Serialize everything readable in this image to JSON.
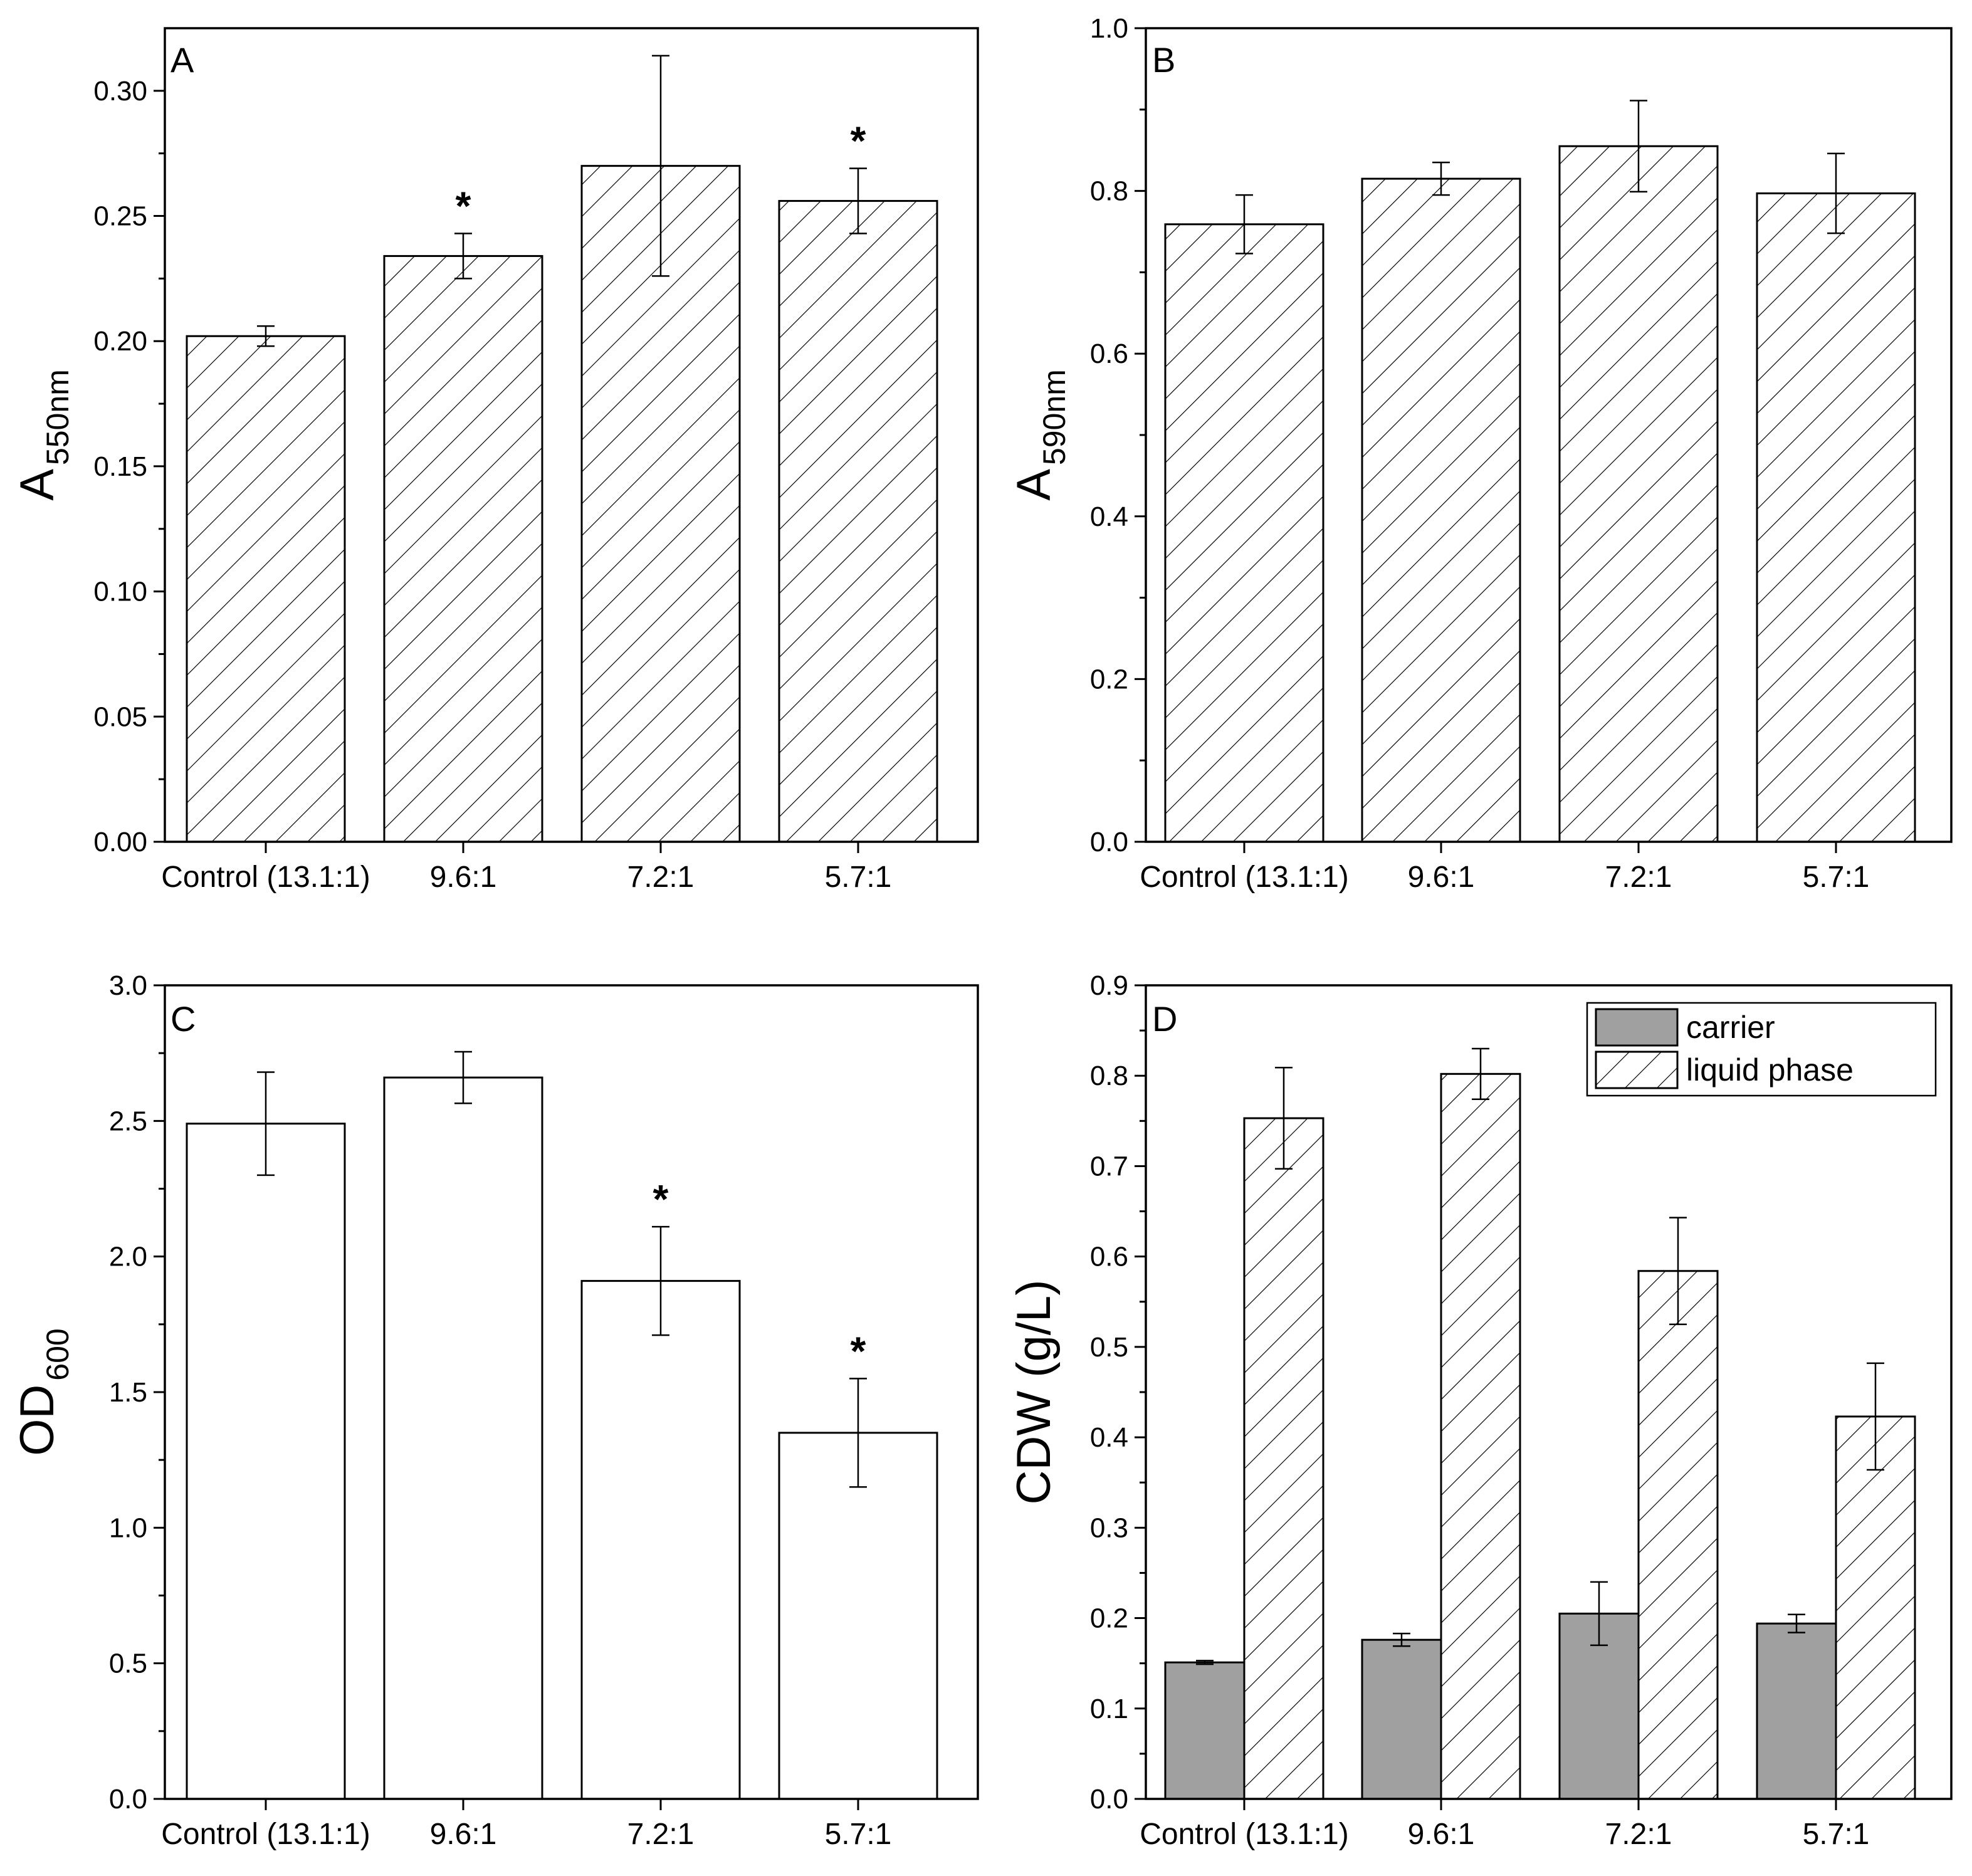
{
  "colors": {
    "axis": "#000000",
    "bar_fill": "#ffffff",
    "carrier_fill": "#a0a0a0",
    "hatch": "#000000"
  },
  "chart_data": [
    {
      "panel": "A",
      "type": "bar",
      "ylabel_main": "A",
      "ylabel_sub": "550nm",
      "ylim": [
        0,
        0.325
      ],
      "yticks": [
        "0.00",
        "0.05",
        "0.10",
        "0.15",
        "0.20",
        "0.25",
        "0.30"
      ],
      "categories": [
        "Control (13.1:1)",
        "9.6:1",
        "7.2:1",
        "5.7:1"
      ],
      "series": [
        {
          "name": "A550nm",
          "pattern": "hatch",
          "values": [
            0.202,
            0.234,
            0.27,
            0.256
          ],
          "errors": [
            0.004,
            0.009,
            0.044,
            0.013
          ]
        }
      ],
      "annotations": [
        {
          "category_index": 1,
          "text": "*"
        },
        {
          "category_index": 3,
          "text": "*"
        }
      ]
    },
    {
      "panel": "B",
      "type": "bar",
      "ylabel_main": "A",
      "ylabel_sub": "590nm",
      "ylim": [
        0,
        1.0
      ],
      "yticks": [
        "0.0",
        "0.2",
        "0.4",
        "0.6",
        "0.8",
        "1.0"
      ],
      "categories": [
        "Control (13.1:1)",
        "9.6:1",
        "7.2:1",
        "5.7:1"
      ],
      "series": [
        {
          "name": "A590nm",
          "pattern": "hatch",
          "values": [
            0.759,
            0.815,
            0.855,
            0.797
          ],
          "errors": [
            0.036,
            0.02,
            0.056,
            0.049
          ]
        }
      ],
      "annotations": []
    },
    {
      "panel": "C",
      "type": "bar",
      "ylabel_main": "OD",
      "ylabel_sub": "600",
      "ylim": [
        0,
        3.0
      ],
      "yticks": [
        "0.0",
        "0.5",
        "1.0",
        "1.5",
        "2.0",
        "2.5",
        "3.0"
      ],
      "categories": [
        "Control (13.1:1)",
        "9.6:1",
        "7.2:1",
        "5.7:1"
      ],
      "series": [
        {
          "name": "OD600",
          "pattern": "open",
          "values": [
            2.49,
            2.66,
            1.91,
            1.35
          ],
          "errors": [
            0.19,
            0.095,
            0.2,
            0.2
          ]
        }
      ],
      "annotations": [
        {
          "category_index": 2,
          "text": "*"
        },
        {
          "category_index": 3,
          "text": "*"
        }
      ]
    },
    {
      "panel": "D",
      "type": "bar",
      "ylabel_main": "CDW (g/L)",
      "ylabel_sub": "",
      "ylim": [
        0,
        0.9
      ],
      "yticks": [
        "0.0",
        "0.1",
        "0.2",
        "0.3",
        "0.4",
        "0.5",
        "0.6",
        "0.7",
        "0.8",
        "0.9"
      ],
      "categories": [
        "Control (13.1:1)",
        "9.6:1",
        "7.2:1",
        "5.7:1"
      ],
      "series": [
        {
          "name": "carrier",
          "pattern": "gray",
          "values": [
            0.151,
            0.176,
            0.205,
            0.194
          ],
          "errors": [
            0.002,
            0.007,
            0.035,
            0.01
          ]
        },
        {
          "name": "liquid phase",
          "pattern": "hatch",
          "values": [
            0.753,
            0.802,
            0.584,
            0.423
          ],
          "errors": [
            0.056,
            0.028,
            0.059,
            0.059
          ]
        }
      ],
      "legend": [
        "carrier",
        "liquid phase"
      ],
      "annotations": []
    }
  ]
}
